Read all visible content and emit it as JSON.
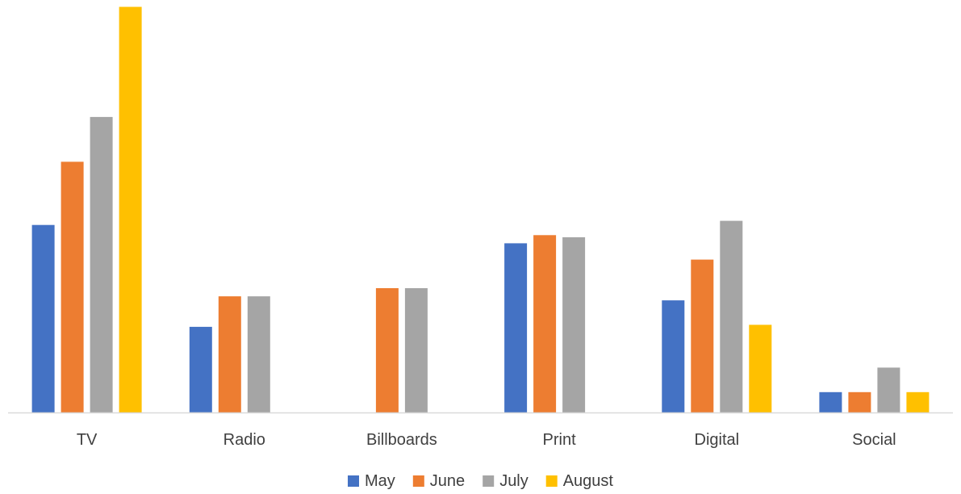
{
  "chart_data": {
    "type": "bar",
    "title": "",
    "xlabel": "",
    "ylabel": "",
    "categories": [
      "TV",
      "Radio",
      "Billboards",
      "Print",
      "Digital",
      "Social"
    ],
    "series": [
      {
        "name": "May",
        "color": "#4472C4",
        "values": [
          46,
          21,
          0,
          41.5,
          27.5,
          5
        ]
      },
      {
        "name": "June",
        "color": "#ED7D31",
        "values": [
          61.5,
          28.5,
          30.5,
          43.5,
          37.5,
          5
        ]
      },
      {
        "name": "July",
        "color": "#A5A5A5",
        "values": [
          72.5,
          28.5,
          30.5,
          43,
          47,
          11
        ]
      },
      {
        "name": "August",
        "color": "#FFC000",
        "values": [
          99.5,
          0,
          0,
          0,
          21.5,
          5
        ]
      }
    ],
    "ylim": [
      0,
      100
    ],
    "grid": false,
    "legend_position": "bottom",
    "axis_color": "#D9D9D9"
  }
}
